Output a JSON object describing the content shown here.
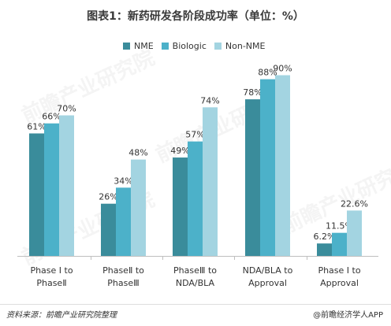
{
  "title": "图表1：新药研发各阶段成功率（单位：%）",
  "footer": {
    "source": "资料来源：前瞻产业研究院整理",
    "credit": "@前瞻经济学人APP"
  },
  "watermark_text": "前瞻产业研究院",
  "colors": {
    "NME": "#3a8c9b",
    "Biologic": "#4cb1c9",
    "Non-NME": "#a3d4e1",
    "axis": "#bfbfbf",
    "label": "#333333"
  },
  "chart_data": {
    "type": "bar",
    "title": "图表1：新药研发各阶段成功率（单位：%）",
    "xlabel": "",
    "ylabel": "",
    "ylim": [
      0,
      100
    ],
    "grid": false,
    "legend_position": "top",
    "categories": [
      [
        "Phase Ⅰ to",
        "PhaseⅡ"
      ],
      [
        "PhaseⅡ to",
        "PhaseⅢ"
      ],
      [
        "PhaseⅢ to",
        "NDA/BLA"
      ],
      [
        "NDA/BLA to",
        "Approval"
      ],
      [
        "Phase Ⅰ to",
        "Approval"
      ]
    ],
    "series": [
      {
        "name": "NME",
        "values": [
          61,
          26,
          49,
          78,
          6.2
        ],
        "labels": [
          "61%",
          "26%",
          "49%",
          "78%",
          "6.2%"
        ]
      },
      {
        "name": "Biologic",
        "values": [
          66,
          34,
          57,
          88,
          11.5
        ],
        "labels": [
          "66%",
          "34%",
          "57%",
          "88%",
          "11.5%"
        ]
      },
      {
        "name": "Non-NME",
        "values": [
          70,
          48,
          74,
          90,
          22.6
        ],
        "labels": [
          "70%",
          "48%",
          "74%",
          "90%",
          "22.6%"
        ]
      }
    ]
  }
}
